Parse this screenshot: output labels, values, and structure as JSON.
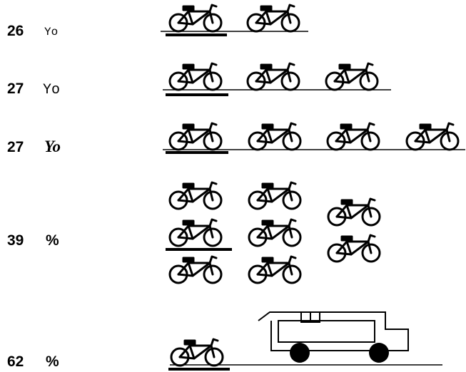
{
  "rows": [
    {
      "number": "26",
      "unit": "Yo"
    },
    {
      "number": "27",
      "unit": "Yo"
    },
    {
      "number": "27",
      "unit": "Yo"
    },
    {
      "number": "39",
      "unit": "%"
    },
    {
      "number": "62",
      "unit": "%"
    }
  ]
}
